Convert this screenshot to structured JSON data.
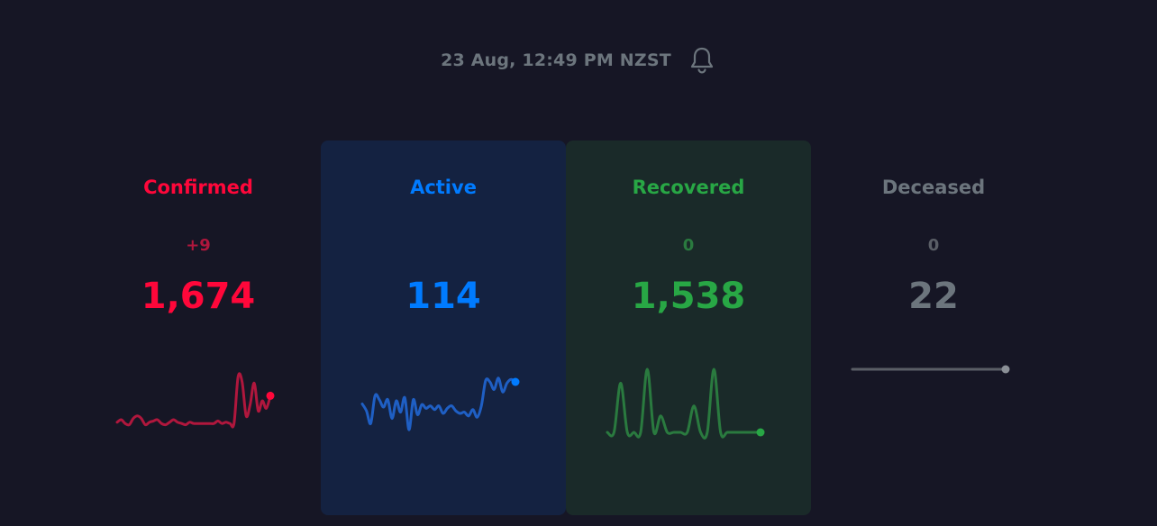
{
  "header": {
    "timestamp": "23 Aug, 12:49 PM NZST",
    "notification_icon": "bell-icon"
  },
  "colors": {
    "background": "#161625",
    "confirmed": "#ff073a",
    "confirmed_line": "#b0173d",
    "active": "#007bff",
    "active_line": "#1f5fc4",
    "recovered": "#28a745",
    "recovered_line": "#2a7a3f",
    "deceased": "#6c757d",
    "deceased_line": "#5a5e66"
  },
  "cards": [
    {
      "key": "confirmed",
      "title": "Confirmed",
      "delta": "+9",
      "total": "1,674",
      "sparkline": [
        0.84,
        0.8,
        0.86,
        0.88,
        0.78,
        0.74,
        0.78,
        0.88,
        0.84,
        0.82,
        0.8,
        0.86,
        0.88,
        0.84,
        0.8,
        0.84,
        0.86,
        0.88,
        0.84,
        0.86,
        0.86,
        0.86,
        0.86,
        0.86,
        0.86,
        0.82,
        0.86,
        0.84,
        0.86,
        0.86,
        0.12,
        0.2,
        0.74,
        0.56,
        0.22,
        0.66,
        0.5,
        0.62,
        0.42
      ]
    },
    {
      "key": "active",
      "title": "Active",
      "delta": "",
      "total": "114",
      "sparkline": [
        0.55,
        0.66,
        0.86,
        0.42,
        0.48,
        0.6,
        0.48,
        0.78,
        0.5,
        0.68,
        0.45,
        0.96,
        0.48,
        0.72,
        0.56,
        0.62,
        0.58,
        0.64,
        0.58,
        0.7,
        0.62,
        0.58,
        0.66,
        0.7,
        0.68,
        0.74,
        0.64,
        0.76,
        0.58,
        0.18,
        0.2,
        0.32,
        0.14,
        0.36,
        0.22,
        0.16,
        0.2
      ]
    },
    {
      "key": "recovered",
      "title": "Recovered",
      "delta": "0",
      "total": "1,538",
      "sparkline": [
        1.0,
        1.0,
        0.22,
        1.0,
        1.0,
        1.0,
        0.0,
        1.0,
        0.74,
        1.0,
        1.0,
        1.0,
        1.0,
        0.58,
        1.0,
        1.0,
        0.0,
        1.0,
        1.0,
        1.0,
        1.0,
        1.0,
        1.0,
        1.0
      ]
    },
    {
      "key": "deceased",
      "title": "Deceased",
      "delta": "0",
      "total": "22",
      "sparkline": [
        0.0,
        0.0,
        0.0,
        0.0,
        0.0,
        0.0,
        0.0,
        0.0,
        0.0,
        0.0
      ]
    }
  ]
}
